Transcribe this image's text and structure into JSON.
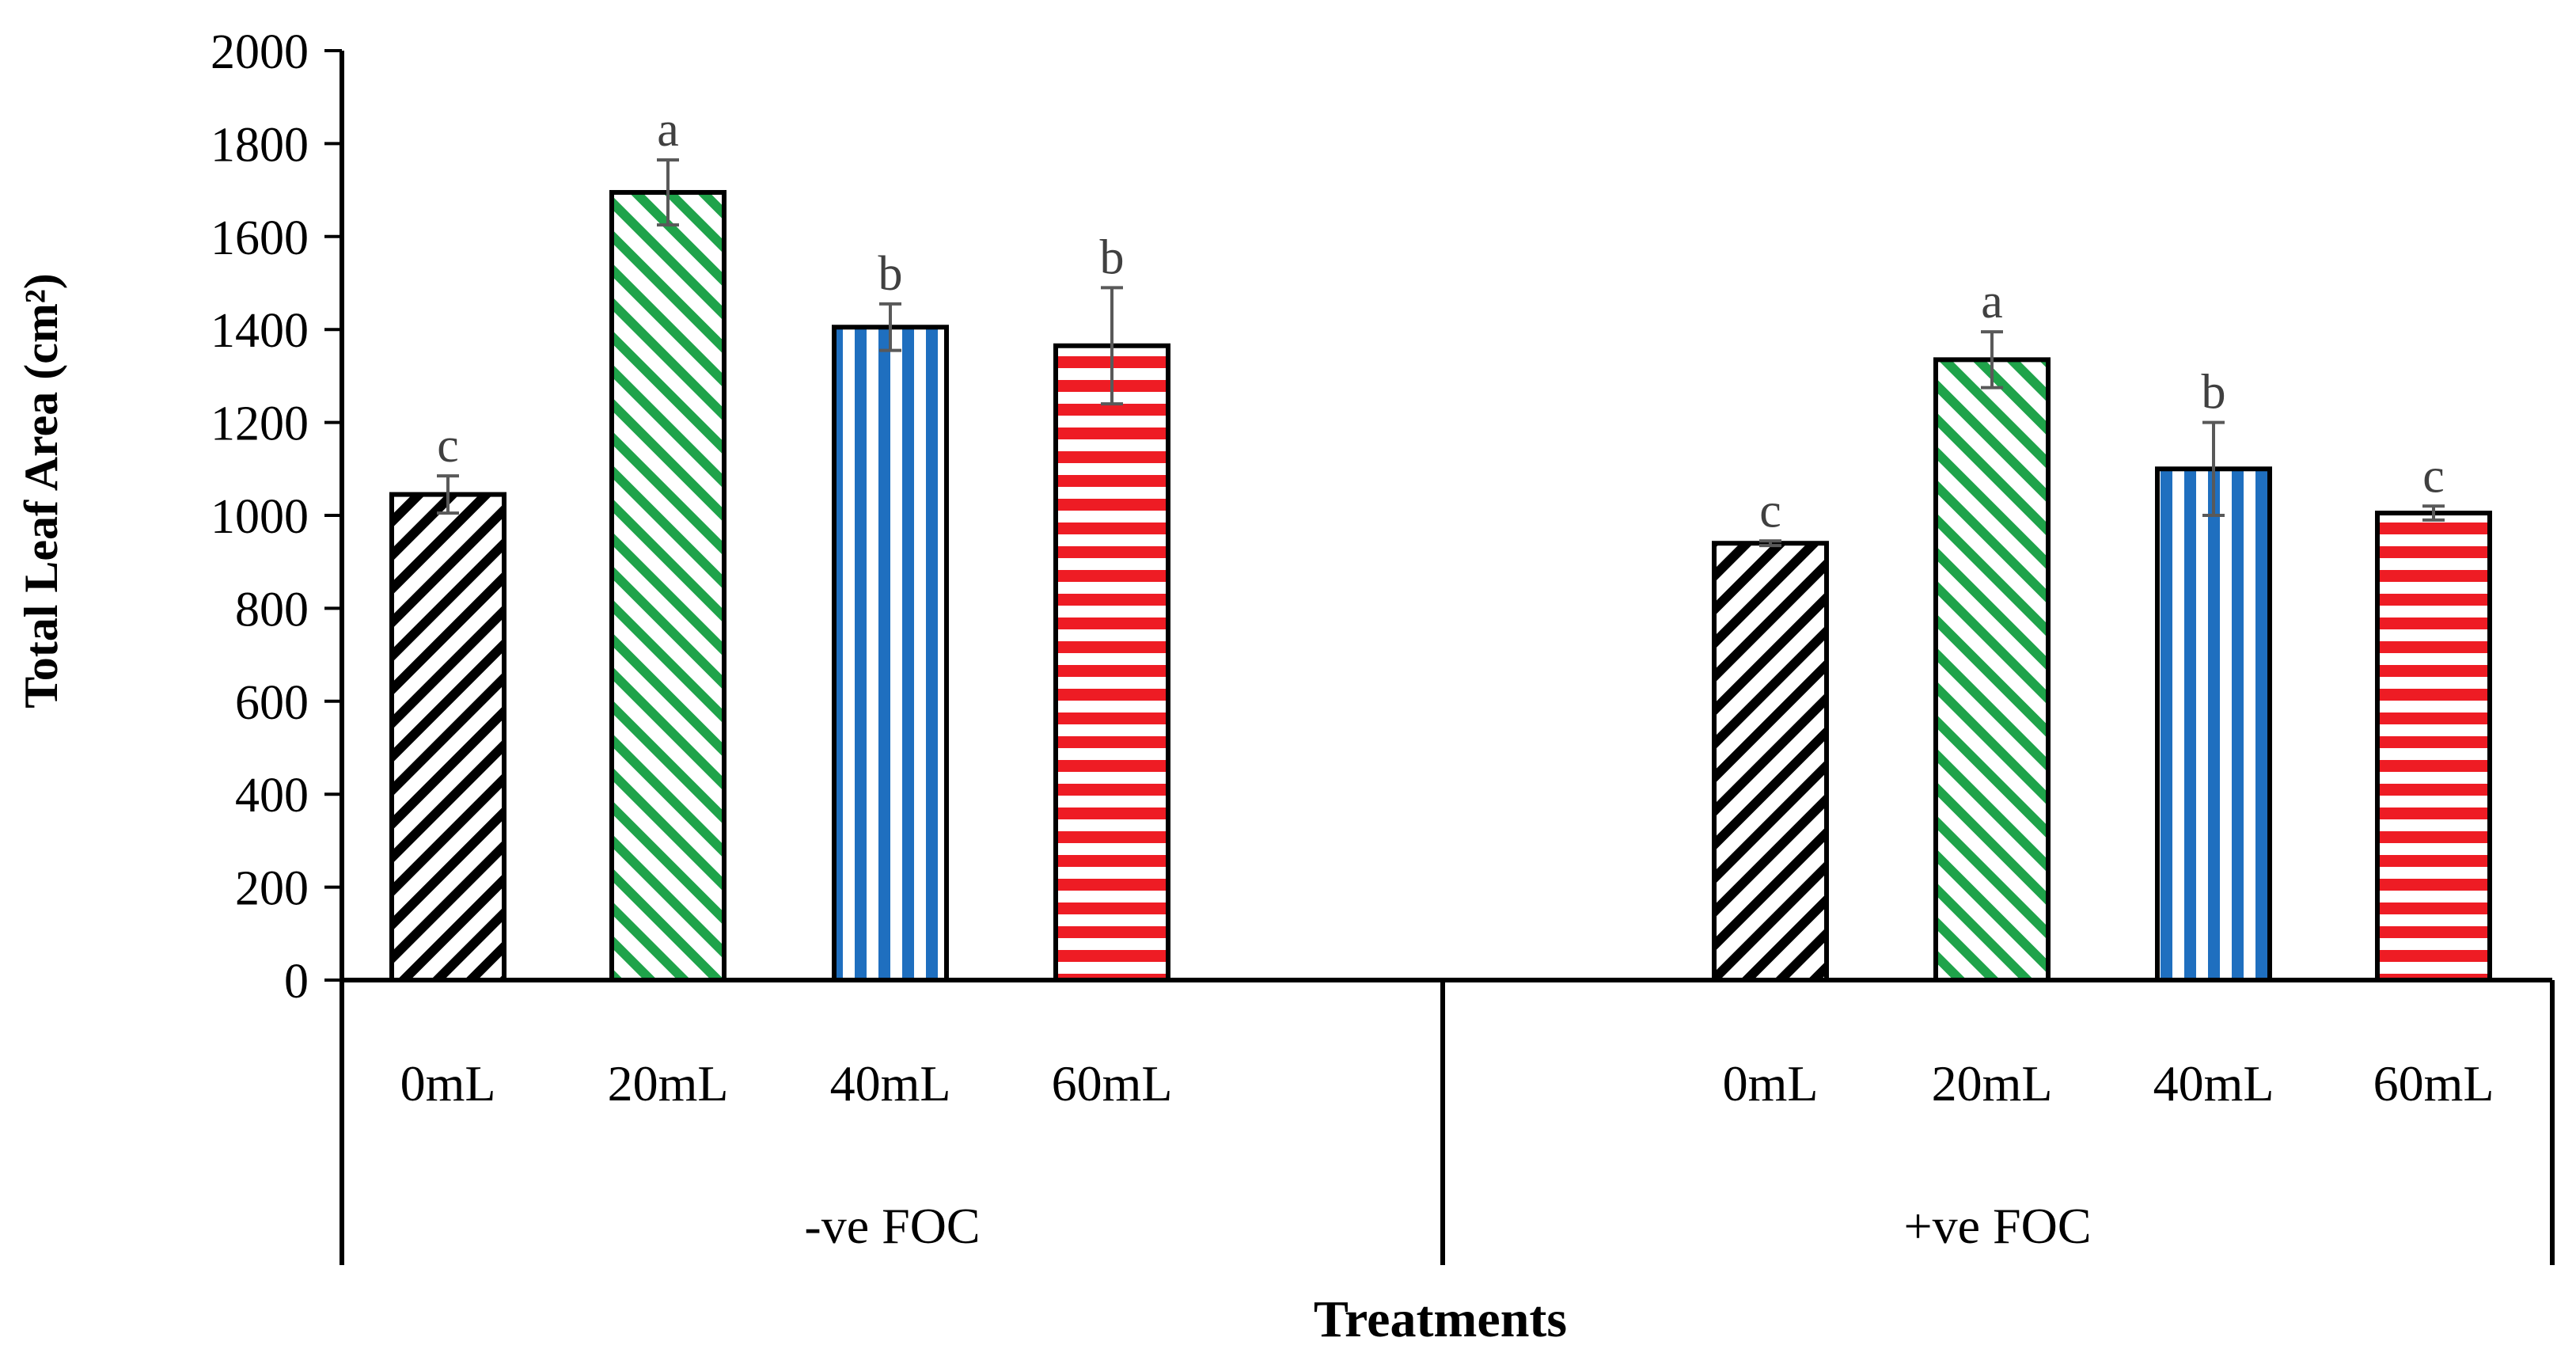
{
  "chart_data": {
    "type": "bar",
    "ylabel": "Total Leaf Area (cm²)",
    "xlabel": "Treatments",
    "ylim": [
      0,
      2000
    ],
    "yticks": [
      "0",
      "200",
      "400",
      "600",
      "800",
      "1000",
      "1200",
      "1400",
      "1600",
      "1800",
      "2000"
    ],
    "groups": [
      {
        "name": "-ve FOC",
        "bars": [
          {
            "label": "0mL",
            "value": 1045,
            "error": 40,
            "letter": "c",
            "pattern": "diag-black"
          },
          {
            "label": "20mL",
            "value": 1695,
            "error": 70,
            "letter": "a",
            "pattern": "diag-green"
          },
          {
            "label": "40mL",
            "value": 1405,
            "error": 50,
            "letter": "b",
            "pattern": "vert-blue"
          },
          {
            "label": "60mL",
            "value": 1365,
            "error": 125,
            "letter": "b",
            "pattern": "horiz-red"
          }
        ]
      },
      {
        "name": "+ve FOC",
        "bars": [
          {
            "label": "0mL",
            "value": 940,
            "error": 5,
            "letter": "c",
            "pattern": "diag-black"
          },
          {
            "label": "20mL",
            "value": 1335,
            "error": 60,
            "letter": "a",
            "pattern": "diag-green"
          },
          {
            "label": "40mL",
            "value": 1100,
            "error": 100,
            "letter": "b",
            "pattern": "vert-blue"
          },
          {
            "label": "60mL",
            "value": 1005,
            "error": 15,
            "letter": "c",
            "pattern": "horiz-red"
          }
        ]
      }
    ],
    "colors": {
      "black": "#000000",
      "green": "#1fa34a",
      "blue": "#1f6fbf",
      "red": "#ee1c24",
      "errorbar": "#595959",
      "letter": "#404040"
    }
  }
}
